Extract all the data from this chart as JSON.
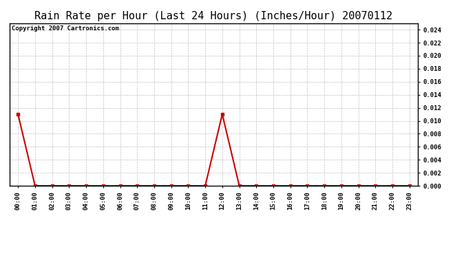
{
  "title": "Rain Rate per Hour (Last 24 Hours) (Inches/Hour) 20070112",
  "copyright": "Copyright 2007 Cartronics.com",
  "hours": [
    "00:00",
    "01:00",
    "02:00",
    "03:00",
    "04:00",
    "05:00",
    "06:00",
    "07:00",
    "08:00",
    "09:00",
    "10:00",
    "11:00",
    "12:00",
    "13:00",
    "14:00",
    "15:00",
    "16:00",
    "17:00",
    "18:00",
    "19:00",
    "20:00",
    "21:00",
    "22:00",
    "23:00"
  ],
  "values": [
    0.011,
    0.0,
    0.0,
    0.0,
    0.0,
    0.0,
    0.0,
    0.0,
    0.0,
    0.0,
    0.0,
    0.0,
    0.011,
    0.0,
    0.0,
    0.0,
    0.0,
    0.0,
    0.0,
    0.0,
    0.0,
    0.0,
    0.0,
    0.0
  ],
  "line_color": "#cc0000",
  "marker_color": "#cc0000",
  "bg_color": "#ffffff",
  "plot_bg_color": "#ffffff",
  "grid_color": "#c0c0c0",
  "ylim": [
    0.0,
    0.025
  ],
  "yticks": [
    0.0,
    0.002,
    0.004,
    0.006,
    0.008,
    0.01,
    0.012,
    0.014,
    0.016,
    0.018,
    0.02,
    0.022,
    0.024
  ],
  "title_fontsize": 11,
  "copyright_fontsize": 6.5,
  "tick_fontsize": 6.5,
  "marker_size": 3
}
